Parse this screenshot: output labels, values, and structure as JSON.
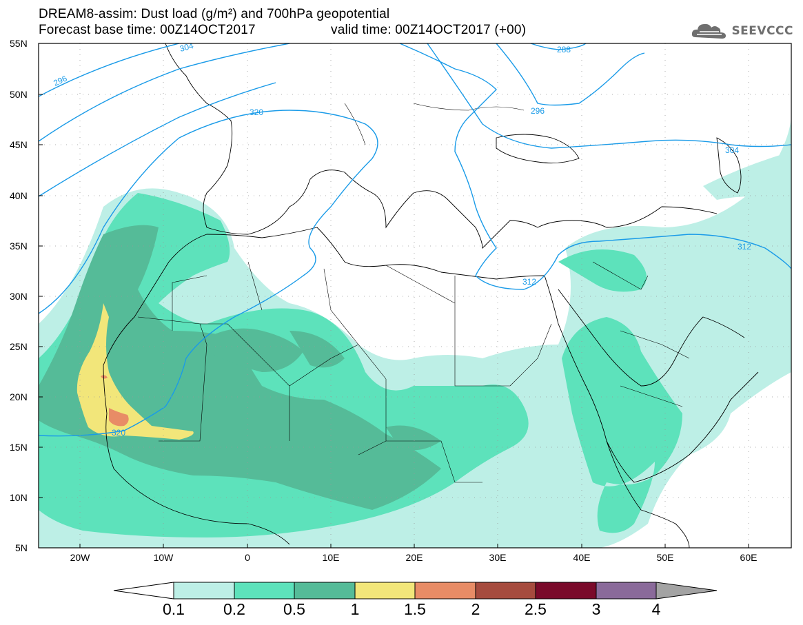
{
  "title": {
    "line1": "DREAM8-assim: Dust load (g/m²) and 700hPa geopotential",
    "line2a": "Forecast base time: 00Z14OCT2017",
    "line2b": "valid time: 00Z14OCT2017 (+00)"
  },
  "logo": {
    "text": "SEEVCCC",
    "icon": "cloud-icon"
  },
  "map": {
    "lat_labels": [
      "55N",
      "50N",
      "45N",
      "40N",
      "35N",
      "30N",
      "25N",
      "20N",
      "15N",
      "10N",
      "5N"
    ],
    "lon_labels": [
      "20W",
      "10W",
      "0",
      "10E",
      "20E",
      "30E",
      "40E",
      "50E",
      "60E"
    ],
    "contour_labels": [
      "296",
      "304",
      "288",
      "320",
      "296",
      "304",
      "312",
      "312",
      "320"
    ]
  },
  "colorbar": {
    "labels": [
      "0.1",
      "0.2",
      "0.5",
      "1",
      "1.5",
      "2",
      "2.5",
      "3",
      "4"
    ],
    "colors": [
      "#ffffff",
      "#bdefe6",
      "#5de2bb",
      "#55bb98",
      "#f2e67a",
      "#e88c66",
      "#a64b3e",
      "#7a0a2a",
      "#8a6a9a",
      "#a3a3a3"
    ]
  },
  "palette": {
    "dust_0_1": "#bdefe6",
    "dust_0_2": "#5de2bb",
    "dust_0_5": "#55bb98",
    "dust_1": "#f2e67a",
    "dust_1_5": "#e88c66",
    "contour": "#1a9be8"
  }
}
